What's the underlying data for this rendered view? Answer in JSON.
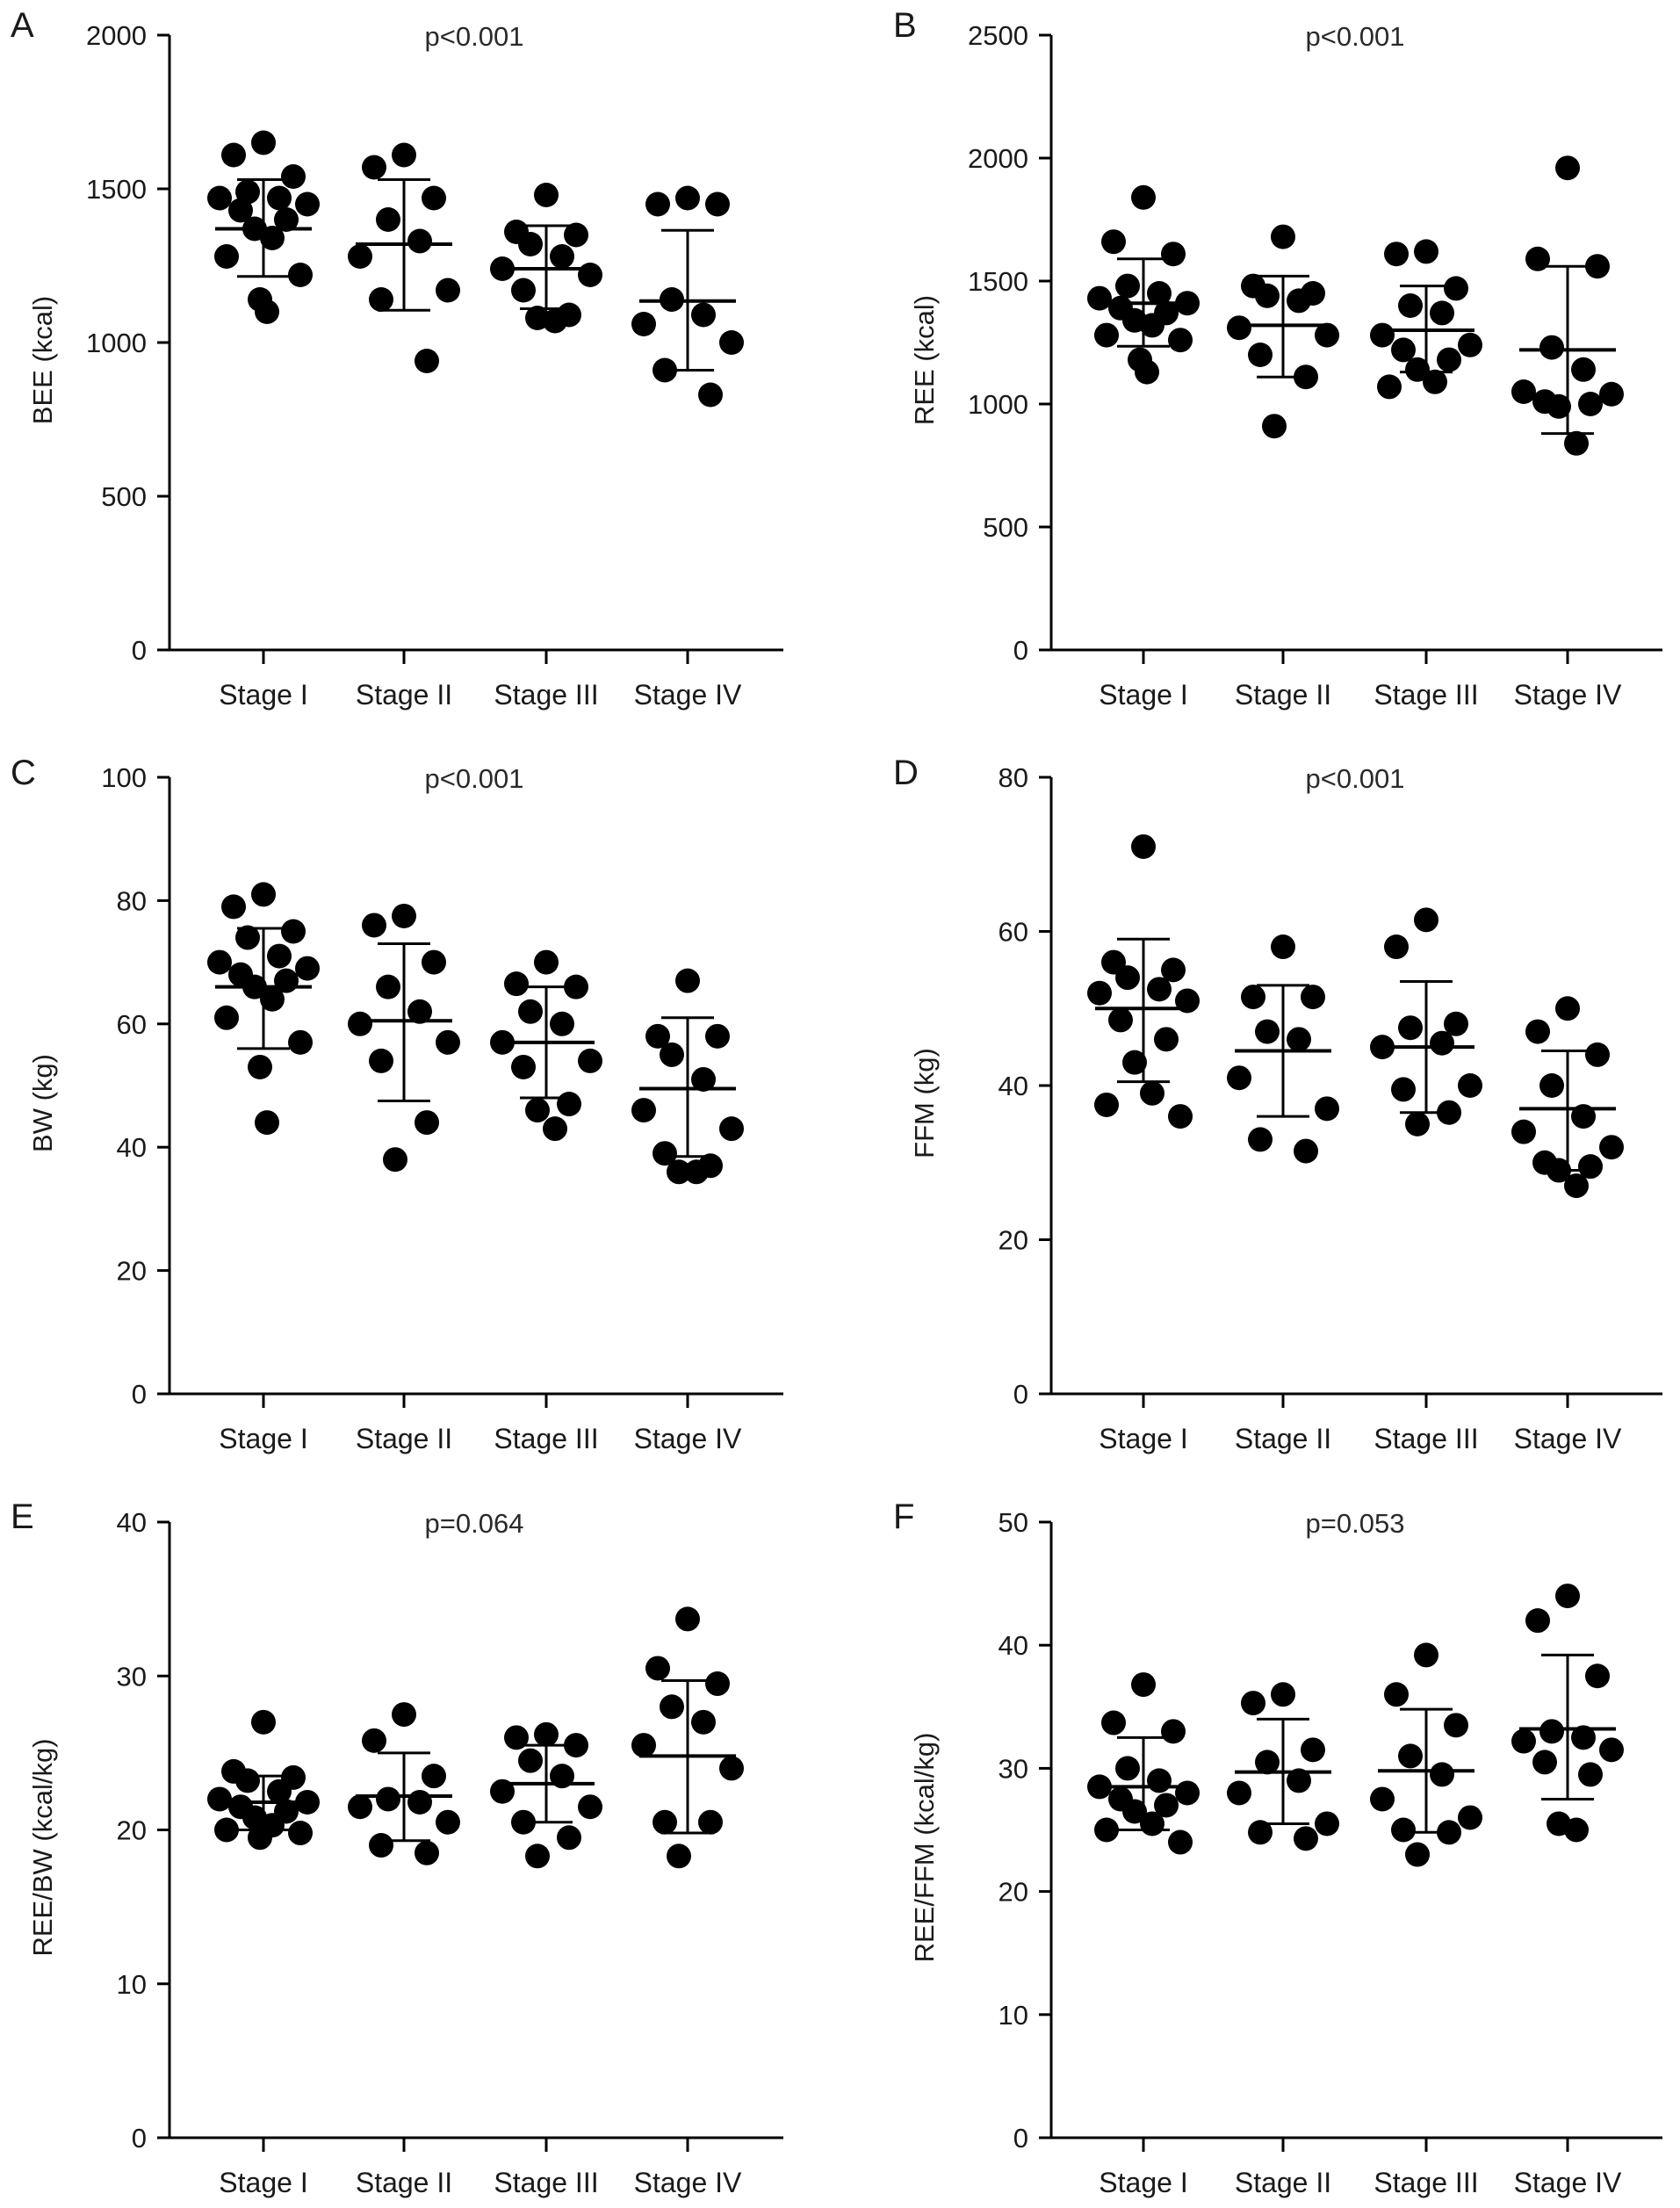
{
  "colors": {
    "marker": "#000000",
    "axis": "#000000",
    "text": "#1a1a1a",
    "background": "#ffffff"
  },
  "chart_data": [
    {
      "panel": "A",
      "type": "scatter",
      "title": "p<0.001",
      "xlabel": "",
      "ylabel": "BEE (kcal)",
      "ylim": [
        0,
        2000
      ],
      "yticks": [
        0,
        500,
        1000,
        1500,
        2000
      ],
      "categories": [
        "Stage I",
        "Stage II",
        "Stage III",
        "Stage IV"
      ],
      "groups": [
        {
          "mean": 1370,
          "sd_low": 1215,
          "sd_high": 1530,
          "values": [
            1650,
            1610,
            1540,
            1490,
            1470,
            1470,
            1450,
            1430,
            1400,
            1370,
            1340,
            1280,
            1220,
            1140,
            1100
          ]
        },
        {
          "mean": 1320,
          "sd_low": 1105,
          "sd_high": 1530,
          "values": [
            1610,
            1570,
            1470,
            1400,
            1330,
            1280,
            1170,
            1140,
            940
          ]
        },
        {
          "mean": 1240,
          "sd_low": 1110,
          "sd_high": 1380,
          "values": [
            1480,
            1360,
            1350,
            1320,
            1280,
            1240,
            1220,
            1170,
            1090,
            1080,
            1070
          ]
        },
        {
          "mean": 1135,
          "sd_low": 910,
          "sd_high": 1365,
          "values": [
            1470,
            1450,
            1450,
            1140,
            1090,
            1060,
            1000,
            910,
            830
          ]
        }
      ]
    },
    {
      "panel": "B",
      "type": "scatter",
      "title": "p<0.001",
      "xlabel": "",
      "ylabel": "REE (kcal)",
      "ylim": [
        0,
        2500
      ],
      "yticks": [
        0,
        500,
        1000,
        1500,
        2000,
        2500
      ],
      "categories": [
        "Stage I",
        "Stage II",
        "Stage III",
        "Stage IV"
      ],
      "groups": [
        {
          "mean": 1410,
          "sd_low": 1235,
          "sd_high": 1590,
          "values": [
            1840,
            1660,
            1610,
            1480,
            1450,
            1430,
            1410,
            1390,
            1370,
            1340,
            1320,
            1280,
            1260,
            1180,
            1130
          ]
        },
        {
          "mean": 1320,
          "sd_low": 1110,
          "sd_high": 1520,
          "values": [
            1680,
            1480,
            1450,
            1440,
            1420,
            1310,
            1280,
            1200,
            1110,
            910
          ]
        },
        {
          "mean": 1300,
          "sd_low": 1130,
          "sd_high": 1480,
          "values": [
            1620,
            1610,
            1470,
            1400,
            1370,
            1280,
            1240,
            1220,
            1180,
            1140,
            1090,
            1070
          ]
        },
        {
          "mean": 1220,
          "sd_low": 880,
          "sd_high": 1560,
          "values": [
            1960,
            1590,
            1560,
            1230,
            1140,
            1050,
            1040,
            1010,
            1000,
            990,
            840
          ]
        }
      ]
    },
    {
      "panel": "C",
      "type": "scatter",
      "title": "p<0.001",
      "xlabel": "",
      "ylabel": "BW (kg)",
      "ylim": [
        0,
        100
      ],
      "yticks": [
        0,
        20,
        40,
        60,
        80,
        100
      ],
      "categories": [
        "Stage I",
        "Stage II",
        "Stage III",
        "Stage IV"
      ],
      "groups": [
        {
          "mean": 66,
          "sd_low": 56,
          "sd_high": 75.5,
          "values": [
            81,
            79,
            75,
            74,
            71,
            70,
            69,
            68,
            67,
            66,
            64,
            61,
            57,
            53,
            44
          ]
        },
        {
          "mean": 60.5,
          "sd_low": 47.5,
          "sd_high": 73,
          "values": [
            77.5,
            76,
            70,
            66,
            62,
            60,
            57,
            54,
            44,
            38
          ]
        },
        {
          "mean": 57,
          "sd_low": 48,
          "sd_high": 66,
          "values": [
            70,
            66.5,
            66,
            62,
            60,
            57,
            54,
            53,
            47,
            46,
            43
          ]
        },
        {
          "mean": 49.5,
          "sd_low": 38.5,
          "sd_high": 61,
          "values": [
            67,
            58,
            58,
            55,
            51,
            46,
            43,
            39,
            37,
            36,
            36
          ]
        }
      ]
    },
    {
      "panel": "D",
      "type": "scatter",
      "title": "p<0.001",
      "xlabel": "",
      "ylabel": "FFM (kg)",
      "ylim": [
        0,
        80
      ],
      "yticks": [
        0,
        20,
        40,
        60,
        80
      ],
      "categories": [
        "Stage I",
        "Stage II",
        "Stage III",
        "Stage IV"
      ],
      "groups": [
        {
          "mean": 50,
          "sd_low": 40.5,
          "sd_high": 59,
          "values": [
            71,
            56,
            55,
            54,
            52.5,
            52,
            51,
            48.5,
            46,
            43,
            39,
            37.5,
            36
          ]
        },
        {
          "mean": 44.5,
          "sd_low": 36,
          "sd_high": 53,
          "values": [
            58,
            51.5,
            51.5,
            47,
            46,
            41,
            37,
            33,
            31.5
          ]
        },
        {
          "mean": 45,
          "sd_low": 36.5,
          "sd_high": 53.5,
          "values": [
            61.5,
            58,
            48,
            47.5,
            45.5,
            45,
            40,
            39.5,
            36.5,
            35
          ]
        },
        {
          "mean": 37,
          "sd_low": 29,
          "sd_high": 44.5,
          "values": [
            50,
            47,
            44,
            40,
            36,
            34,
            32,
            30,
            29.5,
            29,
            27
          ]
        }
      ]
    },
    {
      "panel": "E",
      "type": "scatter",
      "title": "p=0.064",
      "xlabel": "",
      "ylabel": "REE/BW (kcal/kg)",
      "ylim": [
        0,
        40
      ],
      "yticks": [
        0,
        10,
        20,
        30,
        40
      ],
      "categories": [
        "Stage I",
        "Stage II",
        "Stage III",
        "Stage IV"
      ],
      "groups": [
        {
          "mean": 21.8,
          "sd_low": 20,
          "sd_high": 23.5,
          "values": [
            27,
            23.8,
            23.4,
            23.2,
            22.5,
            22,
            21.8,
            21.5,
            21.2,
            20.8,
            20.3,
            20,
            19.8,
            19.5
          ]
        },
        {
          "mean": 22.2,
          "sd_low": 19.3,
          "sd_high": 25,
          "values": [
            27.5,
            25.8,
            23.5,
            22,
            21.8,
            21.5,
            20.5,
            19,
            18.5
          ]
        },
        {
          "mean": 23,
          "sd_low": 20.5,
          "sd_high": 25.5,
          "values": [
            26.2,
            26,
            25.5,
            24.5,
            23.5,
            22.5,
            21.5,
            20.5,
            19.5,
            18.3
          ]
        },
        {
          "mean": 24.8,
          "sd_low": 19.8,
          "sd_high": 29.7,
          "values": [
            33.7,
            30.5,
            29.5,
            28,
            27,
            25.5,
            24,
            20.5,
            20.5,
            18.3
          ]
        }
      ]
    },
    {
      "panel": "F",
      "type": "scatter",
      "title": "p=0.053",
      "xlabel": "",
      "ylabel": "REE/FFM (kcal/kg)",
      "ylim": [
        0,
        50
      ],
      "yticks": [
        0,
        10,
        20,
        30,
        40,
        50
      ],
      "categories": [
        "Stage I",
        "Stage II",
        "Stage III",
        "Stage IV"
      ],
      "groups": [
        {
          "mean": 28.5,
          "sd_low": 25,
          "sd_high": 32.5,
          "values": [
            36.8,
            33.7,
            33,
            30,
            29,
            28.5,
            28,
            27.5,
            27,
            26.5,
            25.5,
            25,
            24
          ]
        },
        {
          "mean": 29.7,
          "sd_low": 25.5,
          "sd_high": 34,
          "values": [
            36,
            35.3,
            31.5,
            30.5,
            29,
            28,
            25.5,
            24.8,
            24.3
          ]
        },
        {
          "mean": 29.8,
          "sd_low": 24.8,
          "sd_high": 34.8,
          "values": [
            39.2,
            36,
            33.5,
            31,
            29.5,
            27.5,
            26,
            25,
            24.8,
            23
          ]
        },
        {
          "mean": 33.2,
          "sd_low": 27.5,
          "sd_high": 39.2,
          "values": [
            44,
            42,
            37.5,
            33,
            32.5,
            32.2,
            31.5,
            30.5,
            29.5,
            25.5,
            25
          ]
        }
      ]
    }
  ]
}
